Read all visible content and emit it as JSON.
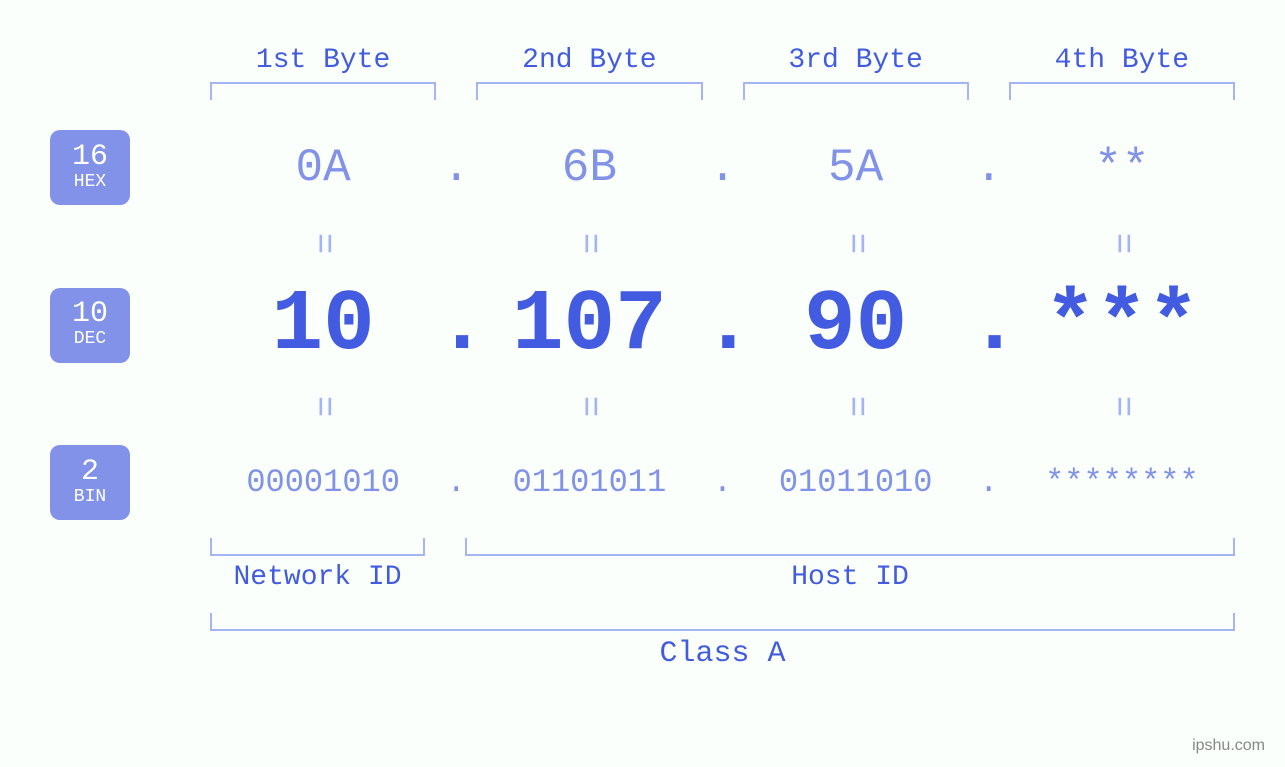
{
  "background_color": "#fafffc",
  "colors": {
    "primary": "#435be0",
    "secondary": "#8192e8",
    "bracket": "#a5b4f3",
    "equals": "#a5b4f3",
    "badge_bg": "#8192e8",
    "badge_text": "#ffffff",
    "watermark": "#888888"
  },
  "typography": {
    "font_family": "Courier New, Courier, monospace",
    "byte_header_fontsize": 28,
    "hex_fontsize": 46,
    "dec_fontsize": 86,
    "bin_fontsize": 32,
    "equals_fontsize": 36,
    "badge_num_fontsize": 30,
    "badge_label_fontsize": 18,
    "footer_label_fontsize": 28,
    "class_label_fontsize": 30
  },
  "byte_headers": [
    "1st Byte",
    "2nd Byte",
    "3rd Byte",
    "4th Byte"
  ],
  "badges": {
    "hex": {
      "num": "16",
      "label": "HEX"
    },
    "dec": {
      "num": "10",
      "label": "DEC"
    },
    "bin": {
      "num": "2",
      "label": "BIN"
    }
  },
  "hex": [
    "0A",
    "6B",
    "5A",
    "**"
  ],
  "dec": [
    "10",
    "107",
    "90",
    "***"
  ],
  "bin": [
    "00001010",
    "01101011",
    "01011010",
    "********"
  ],
  "dot": ".",
  "equals": "=",
  "network_id_label": "Network ID",
  "host_id_label": "Host ID",
  "class_label": "Class A",
  "watermark": "ipshu.com",
  "layout": {
    "badge_width": 80,
    "badge_height": 75,
    "badge_radius": 10,
    "left_margin": 160,
    "column_gap": 40,
    "network_id_width": 215
  }
}
